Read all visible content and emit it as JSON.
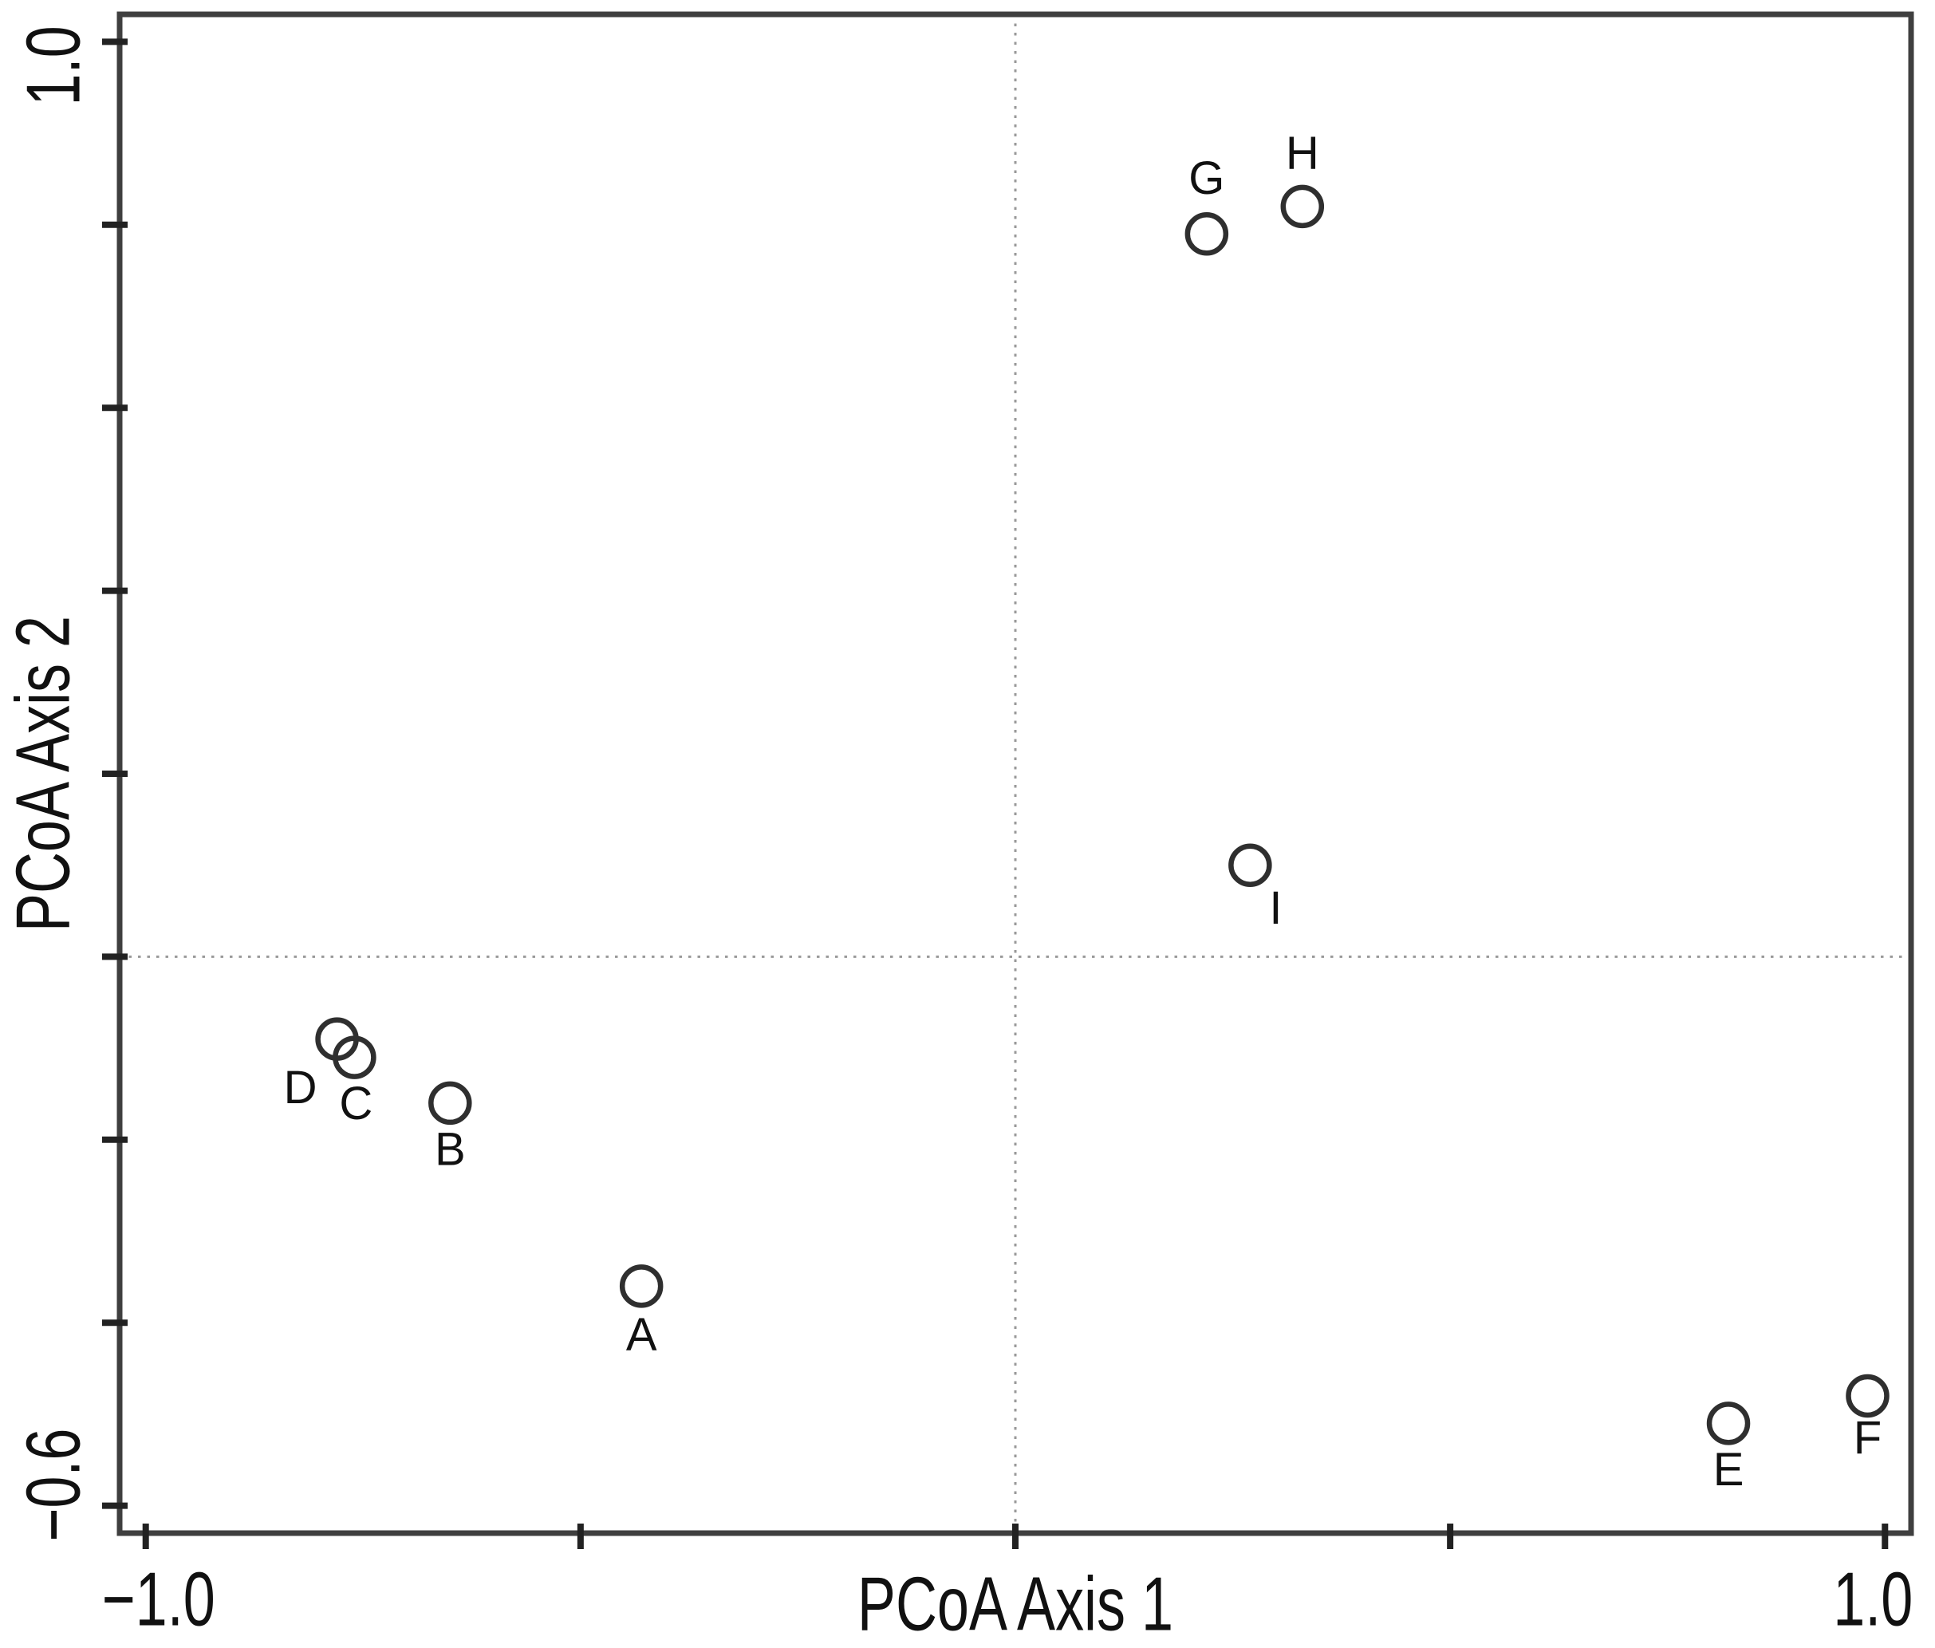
{
  "figure": {
    "background": "#ffffff",
    "frame_color": "#3f3f3f",
    "tick_color": "#222222",
    "marker_color": "#2f2f2f",
    "marker_fill": "#ffffff",
    "dotted_line_color": "#999999",
    "text_color": "#111111"
  },
  "chart_data": {
    "type": "scatter",
    "title": "",
    "xlabel": "PCoA Axis 1",
    "ylabel": "PCoA Axis 2",
    "xlim": [
      -1.03,
      1.03
    ],
    "ylim": [
      -0.63,
      1.03
    ],
    "grid": false,
    "legend": null,
    "marker": {
      "shape": "open-circle",
      "radius_px": 24
    },
    "reference_lines": [
      {
        "axis": "vertical",
        "value": 0.0,
        "style": "dotted"
      },
      {
        "axis": "horizontal",
        "value": 0.0,
        "style": "dotted"
      }
    ],
    "x_ticks": [
      {
        "value": -1.0,
        "label": "−1.0",
        "label_shift": 16
      },
      {
        "value": -0.5,
        "label": "",
        "label_shift": 0
      },
      {
        "value": 0.0,
        "label": "",
        "label_shift": 0
      },
      {
        "value": 0.5,
        "label": "",
        "label_shift": 0
      },
      {
        "value": 1.0,
        "label": "1.0",
        "label_shift": -15
      }
    ],
    "y_ticks": [
      {
        "value": 1.0,
        "label": "1.0",
        "label_shift": 30
      },
      {
        "value": 0.8,
        "label": "",
        "label_shift": 0
      },
      {
        "value": 0.6,
        "label": "",
        "label_shift": 0
      },
      {
        "value": 0.4,
        "label": "",
        "label_shift": 0
      },
      {
        "value": 0.2,
        "label": "",
        "label_shift": 0
      },
      {
        "value": 0.0,
        "label": "",
        "label_shift": 0
      },
      {
        "value": -0.2,
        "label": "",
        "label_shift": 0
      },
      {
        "value": -0.4,
        "label": "",
        "label_shift": 0
      },
      {
        "value": -0.6,
        "label": "−0.6",
        "label_shift": -26
      }
    ],
    "points": [
      {
        "label": "A",
        "x": -0.43,
        "y": -0.36,
        "label_offset": [
          0,
          61
        ]
      },
      {
        "label": "B",
        "x": -0.65,
        "y": -0.16,
        "label_offset": [
          0,
          58
        ]
      },
      {
        "label": "C",
        "x": -0.76,
        "y": -0.11,
        "label_offset": [
          2,
          58
        ]
      },
      {
        "label": "D",
        "x": -0.78,
        "y": -0.09,
        "label_offset": [
          -46,
          61
        ]
      },
      {
        "label": "E",
        "x": 0.82,
        "y": -0.51,
        "label_offset": [
          0,
          58
        ]
      },
      {
        "label": "F",
        "x": 0.98,
        "y": -0.48,
        "label_offset": [
          0,
          53
        ]
      },
      {
        "label": "G",
        "x": 0.22,
        "y": 0.79,
        "label_offset": [
          0,
          -70
        ]
      },
      {
        "label": "H",
        "x": 0.33,
        "y": 0.82,
        "label_offset": [
          0,
          -67
        ]
      },
      {
        "label": "I",
        "x": 0.27,
        "y": 0.1,
        "label_offset": [
          32,
          54
        ]
      }
    ]
  }
}
